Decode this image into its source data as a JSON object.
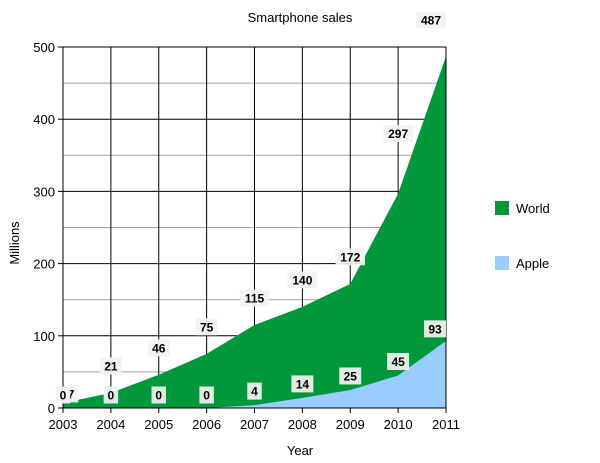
{
  "chart_data": {
    "type": "area",
    "title": "Smartphone sales",
    "xlabel": "Year",
    "ylabel": "Millions",
    "x": [
      "2003",
      "2004",
      "2005",
      "2006",
      "2007",
      "2008",
      "2009",
      "2010",
      "2011"
    ],
    "ylim": [
      0,
      500
    ],
    "yticks": [
      "0",
      "100",
      "200",
      "300",
      "400",
      "500"
    ],
    "grid": true,
    "legend_position": "right",
    "series": [
      {
        "name": "World",
        "color": "#00983a",
        "values": [
          7,
          21,
          46,
          75,
          115,
          140,
          172,
          297,
          487
        ],
        "labels": [
          "7",
          "21",
          "46",
          "75",
          "115",
          "140",
          "172",
          "297",
          "487"
        ]
      },
      {
        "name": "Apple",
        "color": "#99ccff",
        "values": [
          0,
          0,
          0,
          0,
          4,
          14,
          25,
          45,
          93
        ],
        "labels": [
          "0",
          "0",
          "0",
          "0",
          "4",
          "14",
          "25",
          "45",
          "93"
        ]
      }
    ]
  }
}
